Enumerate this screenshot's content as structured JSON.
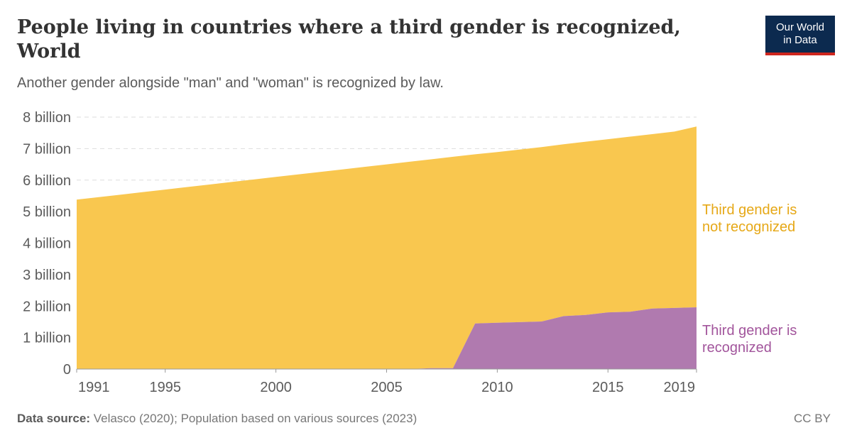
{
  "header": {
    "title": "People living in countries where a third gender is recognized, World",
    "subtitle": "Another gender alongside \"man\" and \"woman\" is recognized by law.",
    "logo_line1": "Our World",
    "logo_line2": "in Data"
  },
  "footer": {
    "source_label": "Data source:",
    "source_text": "Velasco (2020); Population based on various sources (2023)",
    "license": "CC BY"
  },
  "colors": {
    "not_recognized": "#f9c74f",
    "recognized": "#b07aaf",
    "not_recognized_label": "#e6a817",
    "recognized_label": "#a2559c"
  },
  "chart_data": {
    "type": "area",
    "stacked": true,
    "x": [
      1991,
      1992,
      1993,
      1994,
      1995,
      1996,
      1997,
      1998,
      1999,
      2000,
      2001,
      2002,
      2003,
      2004,
      2005,
      2006,
      2007,
      2008,
      2009,
      2010,
      2011,
      2012,
      2013,
      2014,
      2015,
      2016,
      2017,
      2018,
      2019
    ],
    "series": [
      {
        "name": "Third gender is recognized",
        "label_lines": [
          "Third gender is",
          "recognized"
        ],
        "values": [
          0,
          0,
          0,
          0,
          0,
          0,
          0,
          0,
          0,
          0,
          0,
          0,
          0,
          0,
          0,
          0,
          0.03,
          0.03,
          1.45,
          1.47,
          1.49,
          1.51,
          1.68,
          1.72,
          1.8,
          1.82,
          1.92,
          1.94,
          1.96
        ]
      },
      {
        "name": "Third gender is not recognized",
        "label_lines": [
          "Third gender is",
          "not recognized"
        ],
        "values": [
          5.38,
          5.46,
          5.54,
          5.62,
          5.7,
          5.78,
          5.86,
          5.94,
          6.02,
          6.1,
          6.18,
          6.26,
          6.34,
          6.42,
          6.5,
          6.58,
          6.63,
          6.71,
          5.37,
          5.42,
          5.48,
          5.54,
          5.46,
          5.5,
          5.5,
          5.56,
          5.54,
          5.6,
          5.74
        ]
      }
    ],
    "y_ticks": [
      0,
      1,
      2,
      3,
      4,
      5,
      6,
      7,
      8
    ],
    "y_tick_labels": [
      "0",
      "1 billion",
      "2 billion",
      "3 billion",
      "4 billion",
      "5 billion",
      "6 billion",
      "7 billion",
      "8 billion"
    ],
    "x_ticks": [
      1991,
      1995,
      2000,
      2005,
      2010,
      2015,
      2019
    ],
    "x_tick_labels": [
      "1991",
      "1995",
      "2000",
      "2005",
      "2010",
      "2015",
      "2019"
    ],
    "ylim": [
      0,
      8
    ],
    "xlim": [
      1991,
      2019
    ],
    "grid": true
  }
}
